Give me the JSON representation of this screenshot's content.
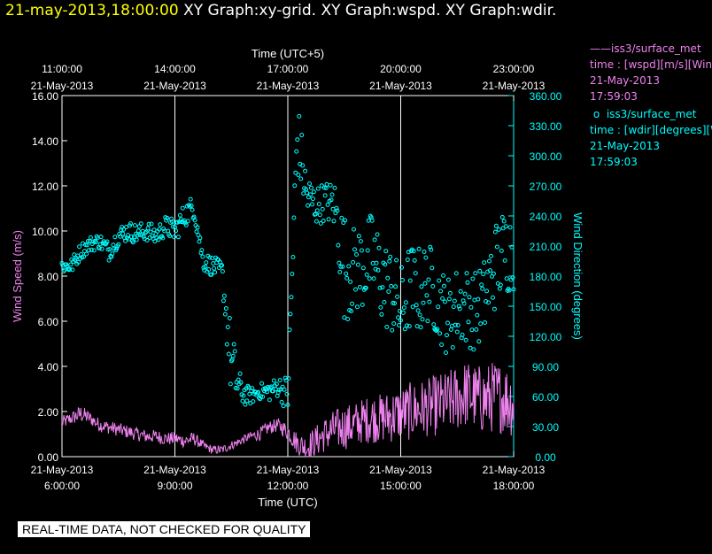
{
  "header": {
    "timestamp": "21-may-2013,18:00:00",
    "titles": "  XY Graph:xy-grid.  XY Graph:wspd.  XY Graph:wdir."
  },
  "legend": {
    "wspd": {
      "symbol": "——",
      "name": "iss3/surface_met",
      "line2": "time : [wspd][m/s][Wind",
      "line3": "21-May-2013",
      "line4": "17:59:03"
    },
    "wdir": {
      "symbol": "o",
      "name": "iss3/surface_met",
      "line2": "time : [wdir][degrees][W",
      "line3": "21-May-2013",
      "line4": "17:59:03"
    }
  },
  "banner": "REAL-TIME DATA, NOT CHECKED FOR QUALITY",
  "colors": {
    "wspd": "#ee82ee",
    "wdir": "#00ffff",
    "axis": "#ffffff",
    "grid": "#ffffff",
    "timestamp": "#ffff00"
  },
  "chart_data": {
    "type": "line",
    "title": "XY Graph:xy-grid.  XY Graph:wspd.  XY Graph:wdir.",
    "xlabel_bottom": "Time (UTC)",
    "xlabel_top": "Time (UTC+5)",
    "ylabel_left": "Wind Speed (m/s)",
    "ylabel_right": "Wind Direction (degrees)",
    "xlim_hours_utc": [
      6,
      18
    ],
    "ylim_left": [
      0,
      16
    ],
    "ylim_right": [
      0,
      360
    ],
    "bottom_ticks": [
      {
        "h": 6,
        "date": "21-May-2013",
        "time": "6:00:00"
      },
      {
        "h": 9,
        "date": "21-May-2013",
        "time": "9:00:00"
      },
      {
        "h": 12,
        "date": "21-May-2013",
        "time": "12:00:00"
      },
      {
        "h": 15,
        "date": "21-May-2013",
        "time": "15:00:00"
      },
      {
        "h": 18,
        "date": "21-May-2013",
        "time": "18:00:00"
      }
    ],
    "top_ticks": [
      {
        "h": 6,
        "time": "11:00:00",
        "date": "21-May-2013"
      },
      {
        "h": 9,
        "time": "14:00:00",
        "date": "21-May-2013"
      },
      {
        "h": 12,
        "time": "17:00:00",
        "date": "21-May-2013"
      },
      {
        "h": 15,
        "time": "20:00:00",
        "date": "21-May-2013"
      },
      {
        "h": 18,
        "time": "23:00:00",
        "date": "21-May-2013"
      }
    ],
    "left_ticks": [
      "0.00",
      "2.00",
      "4.00",
      "6.00",
      "8.00",
      "10.00",
      "12.00",
      "14.00",
      "16.00"
    ],
    "right_ticks": [
      "0.00",
      "30.00",
      "60.00",
      "90.00",
      "120.00",
      "150.00",
      "180.00",
      "210.00",
      "240.00",
      "270.00",
      "300.00",
      "330.00",
      "360.00"
    ],
    "grid_x_hours": [
      9,
      12,
      15
    ],
    "series": [
      {
        "name": "wspd",
        "style": "line",
        "units": "m/s",
        "x": [
          6.0,
          6.25,
          6.5,
          6.75,
          7.0,
          7.25,
          7.5,
          7.75,
          8.0,
          8.25,
          8.5,
          8.75,
          9.0,
          9.25,
          9.5,
          9.75,
          10.0,
          10.25,
          10.5,
          10.75,
          11.0,
          11.25,
          11.5,
          11.75,
          12.0,
          12.25,
          12.5,
          12.75,
          13.0,
          13.25,
          13.5,
          13.75,
          14.0,
          14.25,
          14.5,
          14.75,
          15.0,
          15.25,
          15.5,
          15.75,
          16.0,
          16.25,
          16.5,
          16.75,
          17.0,
          17.25,
          17.5,
          17.75,
          18.0
        ],
        "y": [
          1.5,
          1.7,
          1.9,
          1.7,
          1.4,
          1.3,
          1.2,
          1.1,
          1.0,
          0.9,
          0.9,
          0.8,
          0.8,
          0.7,
          0.8,
          0.5,
          0.3,
          0.3,
          0.5,
          0.7,
          0.9,
          1.0,
          1.3,
          1.4,
          1.1,
          0.6,
          0.4,
          0.7,
          1.0,
          1.2,
          1.3,
          1.4,
          1.6,
          1.7,
          1.7,
          1.8,
          1.9,
          2.0,
          2.1,
          2.2,
          2.3,
          2.4,
          2.6,
          2.8,
          2.6,
          2.5,
          2.7,
          2.6,
          2.4
        ],
        "noise": [
          0.3,
          0.3,
          0.4,
          0.3,
          0.3,
          0.3,
          0.3,
          0.3,
          0.3,
          0.3,
          0.3,
          0.3,
          0.3,
          0.3,
          0.3,
          0.2,
          0.2,
          0.2,
          0.2,
          0.2,
          0.2,
          0.3,
          0.3,
          0.3,
          0.4,
          0.5,
          0.6,
          0.7,
          0.8,
          0.9,
          1.0,
          1.0,
          1.0,
          1.1,
          1.1,
          1.2,
          1.2,
          1.3,
          1.3,
          1.3,
          1.4,
          1.4,
          1.5,
          1.5,
          1.5,
          1.6,
          1.6,
          1.6,
          1.6
        ]
      },
      {
        "name": "wdir",
        "style": "markers",
        "units": "degrees",
        "x": [
          6.0,
          6.25,
          6.5,
          6.75,
          7.0,
          7.25,
          7.5,
          7.75,
          8.0,
          8.25,
          8.5,
          8.75,
          9.0,
          9.25,
          9.5,
          9.75,
          10.0,
          10.25,
          10.5,
          10.75,
          11.0,
          11.25,
          11.5,
          11.75,
          12.0,
          12.25,
          12.5,
          12.75,
          13.0,
          13.25,
          13.5,
          13.75,
          14.0,
          14.25,
          14.5,
          14.75,
          15.0,
          15.25,
          15.5,
          15.75,
          16.0,
          16.25,
          16.5,
          16.75,
          17.0,
          17.25,
          17.5,
          17.75,
          18.0
        ],
        "y": [
          190,
          190,
          205,
          212,
          215,
          205,
          220,
          225,
          222,
          225,
          220,
          230,
          225,
          240,
          250,
          195,
          190,
          185,
          90,
          65,
          60,
          65,
          65,
          70,
          62,
          320,
          260,
          250,
          255,
          250,
          190,
          185,
          190,
          200,
          175,
          165,
          145,
          170,
          165,
          175,
          155,
          140,
          150,
          150,
          145,
          160,
          190,
          205,
          205
        ],
        "noise": [
          8,
          8,
          8,
          8,
          8,
          10,
          10,
          10,
          10,
          10,
          10,
          10,
          12,
          12,
          12,
          10,
          10,
          10,
          40,
          15,
          8,
          8,
          10,
          10,
          20,
          40,
          25,
          20,
          20,
          25,
          55,
          45,
          45,
          45,
          45,
          45,
          45,
          45,
          45,
          40,
          40,
          40,
          40,
          40,
          40,
          40,
          45,
          45,
          40
        ]
      }
    ]
  }
}
